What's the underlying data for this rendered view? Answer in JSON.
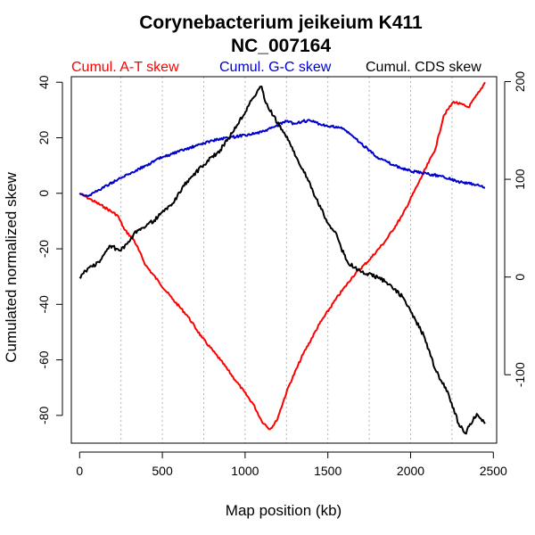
{
  "chart_data": {
    "type": "line",
    "title": "Corynebacterium jeikeium K411",
    "subtitle": "NC_007164",
    "xlabel": "Map position (kb)",
    "ylabel": "Cumulated normalized skew",
    "xlim": [
      -50,
      2520
    ],
    "ylim_left": [
      -90,
      42
    ],
    "ylim_right": [
      -170,
      205
    ],
    "x_ticks": [
      0,
      500,
      1000,
      1500,
      2000,
      2500
    ],
    "y_ticks_left": [
      40,
      20,
      0,
      -20,
      -40,
      -60,
      -80
    ],
    "y_ticks_right": [
      200,
      100,
      0,
      -100
    ],
    "vertical_grid_x": [
      250,
      500,
      750,
      1000,
      1250,
      1500,
      1750,
      2000,
      2250
    ],
    "grid": "vertical dotted lines",
    "legend_placement": "top",
    "series": [
      {
        "name": "Cumul. A-T skew",
        "color": "#ff0000",
        "axis": "left",
        "x": [
          0,
          60,
          150,
          230,
          270,
          330,
          400,
          480,
          560,
          650,
          740,
          850,
          950,
          1050,
          1100,
          1150,
          1190,
          1260,
          1350,
          1450,
          1550,
          1650,
          1750,
          1850,
          1950,
          2050,
          2150,
          2200,
          2260,
          2350,
          2420,
          2450
        ],
        "y": [
          0,
          -2,
          -5,
          -8,
          -13,
          -17,
          -26,
          -32,
          -38,
          -44,
          -52,
          -60,
          -68,
          -76,
          -82,
          -85,
          -82,
          -70,
          -58,
          -47,
          -38,
          -30,
          -24,
          -17,
          -8,
          4,
          16,
          28,
          33,
          31,
          37,
          40
        ]
      },
      {
        "name": "Cumul. G-C skew",
        "color": "#0000cc",
        "axis": "left",
        "x": [
          0,
          50,
          110,
          200,
          300,
          400,
          500,
          600,
          700,
          800,
          900,
          1000,
          1100,
          1180,
          1250,
          1300,
          1350,
          1400,
          1450,
          1500,
          1550,
          1600,
          1700,
          1800,
          1900,
          2000,
          2100,
          2200,
          2300,
          2400,
          2450
        ],
        "y": [
          0,
          -1,
          1,
          4,
          7,
          10,
          13,
          15,
          17,
          19,
          20,
          21,
          22,
          24,
          26,
          25,
          26,
          26,
          25,
          24,
          24,
          23,
          18,
          13,
          10,
          8,
          7,
          6,
          4,
          3,
          2
        ]
      },
      {
        "name": "Cumul. CDS skew",
        "color": "#000000",
        "axis": "right",
        "x": [
          0,
          60,
          120,
          180,
          250,
          300,
          350,
          450,
          560,
          650,
          750,
          850,
          950,
          1020,
          1080,
          1100,
          1120,
          1170,
          1260,
          1350,
          1430,
          1500,
          1550,
          1580,
          1620,
          1700,
          1800,
          1850,
          1950,
          2080,
          2150,
          2230,
          2290,
          2330,
          2400,
          2450
        ],
        "y": [
          0,
          10,
          15,
          32,
          27,
          36,
          48,
          58,
          75,
          98,
          115,
          130,
          155,
          175,
          192,
          195,
          180,
          165,
          140,
          110,
          80,
          55,
          45,
          30,
          15,
          5,
          0,
          -5,
          -20,
          -60,
          -95,
          -120,
          -150,
          -160,
          -140,
          -150
        ]
      }
    ]
  }
}
